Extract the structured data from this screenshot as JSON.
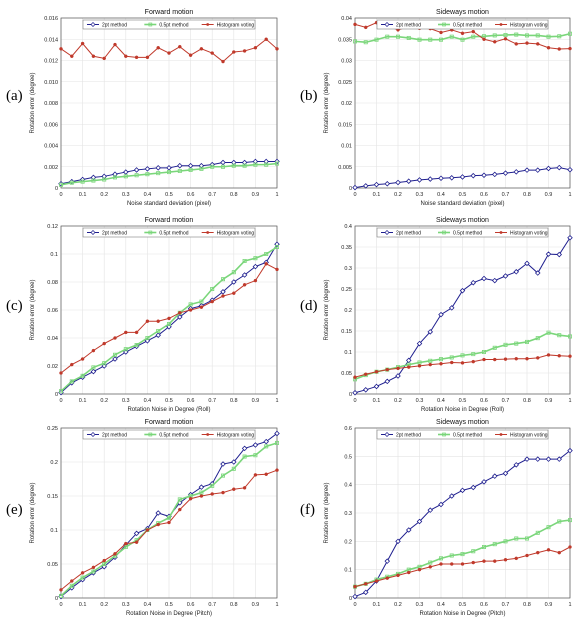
{
  "colors": {
    "2pt": "#1f1f8f",
    "0.5pt": "#7ad67a",
    "hist": "#c0392b"
  },
  "chart_data": [
    {
      "type": "line",
      "panel": "(a)",
      "title": "Forward motion",
      "xlabel": "Noise standard deviation (pixel)",
      "ylabel": "Rotation error (degree)",
      "xlim": [
        0,
        1
      ],
      "ylim": [
        0,
        0.016
      ],
      "xticks": [
        "0",
        "0.1",
        "0.2",
        "0.3",
        "0.4",
        "0.5",
        "0.6",
        "0.7",
        "0.8",
        "0.9",
        "1"
      ],
      "yticks": [
        "0",
        "0.002",
        "0.004",
        "0.006",
        "0.008",
        "0.010",
        "0.012",
        "0.014",
        "0.016"
      ],
      "x": [
        0,
        0.05,
        0.1,
        0.15,
        0.2,
        0.25,
        0.3,
        0.35,
        0.4,
        0.45,
        0.5,
        0.55,
        0.6,
        0.65,
        0.7,
        0.75,
        0.8,
        0.85,
        0.9,
        0.95,
        1
      ],
      "series": [
        {
          "name": "2pt method",
          "key": "2pt",
          "marker": "diamond",
          "values": [
            0.0004,
            0.0006,
            0.0008,
            0.001,
            0.0011,
            0.0013,
            0.0015,
            0.0017,
            0.0018,
            0.0019,
            0.0019,
            0.0021,
            0.0021,
            0.0021,
            0.0022,
            0.0024,
            0.0024,
            0.0024,
            0.0025,
            0.0025,
            0.0025
          ]
        },
        {
          "name": "0.5pt method",
          "key": "0.5pt",
          "marker": "square",
          "values": [
            0.0003,
            0.0005,
            0.0006,
            0.0007,
            0.0008,
            0.001,
            0.0011,
            0.0012,
            0.0013,
            0.0014,
            0.0015,
            0.0016,
            0.0017,
            0.0018,
            0.002,
            0.002,
            0.0021,
            0.0021,
            0.0022,
            0.0022,
            0.0023
          ]
        },
        {
          "name": "Histogram voting",
          "key": "hist",
          "marker": "circle",
          "values": [
            0.0131,
            0.0124,
            0.0136,
            0.0124,
            0.0122,
            0.0135,
            0.0124,
            0.0123,
            0.0123,
            0.0132,
            0.0127,
            0.0133,
            0.0125,
            0.0131,
            0.0127,
            0.0119,
            0.0128,
            0.0129,
            0.0132,
            0.014,
            0.0131
          ]
        }
      ],
      "legend": "top"
    },
    {
      "type": "line",
      "panel": "(b)",
      "title": "Sideways motion",
      "xlabel": "Noise standard deviation (pixel)",
      "ylabel": "Rotation error (degree)",
      "xlim": [
        0,
        1
      ],
      "ylim": [
        0,
        0.04
      ],
      "xticks": [
        "0",
        "0.1",
        "0.2",
        "0.3",
        "0.4",
        "0.5",
        "0.6",
        "0.7",
        "0.8",
        "0.9",
        "1"
      ],
      "yticks": [
        "0",
        "0.005",
        "0.01",
        "0.015",
        "0.02",
        "0.025",
        "0.03",
        "0.035",
        "0.04"
      ],
      "x": [
        0,
        0.05,
        0.1,
        0.15,
        0.2,
        0.25,
        0.3,
        0.35,
        0.4,
        0.45,
        0.5,
        0.55,
        0.6,
        0.65,
        0.7,
        0.75,
        0.8,
        0.85,
        0.9,
        0.95,
        1
      ],
      "series": [
        {
          "name": "2pt method",
          "key": "2pt",
          "marker": "diamond",
          "values": [
            0.0001,
            0.0005,
            0.0008,
            0.001,
            0.0013,
            0.0016,
            0.0019,
            0.0021,
            0.0023,
            0.0024,
            0.0026,
            0.0029,
            0.003,
            0.0032,
            0.0035,
            0.0038,
            0.0042,
            0.0042,
            0.0046,
            0.0048,
            0.0043
          ]
        },
        {
          "name": "0.5pt method",
          "key": "0.5pt",
          "marker": "square",
          "values": [
            0.0345,
            0.0343,
            0.0349,
            0.0356,
            0.0356,
            0.0353,
            0.0349,
            0.0349,
            0.0349,
            0.0356,
            0.0349,
            0.0356,
            0.0357,
            0.0359,
            0.036,
            0.0361,
            0.0359,
            0.0359,
            0.0356,
            0.0357,
            0.0363
          ]
        },
        {
          "name": "Histogram voting",
          "key": "hist",
          "marker": "circle",
          "values": [
            0.0385,
            0.0378,
            0.0389,
            0.0382,
            0.0372,
            0.038,
            0.0376,
            0.0375,
            0.0366,
            0.0372,
            0.0364,
            0.0368,
            0.035,
            0.0344,
            0.0351,
            0.0339,
            0.0341,
            0.0339,
            0.033,
            0.0327,
            0.0328
          ]
        }
      ],
      "legend": "top"
    },
    {
      "type": "line",
      "panel": "(c)",
      "title": "Forward motion",
      "xlabel": "Rotation Noise in Degree (Roll)",
      "ylabel": "Rotation error (degree)",
      "xlim": [
        0,
        1
      ],
      "ylim": [
        0,
        0.12
      ],
      "xticks": [
        "0",
        "0.1",
        "0.2",
        "0.3",
        "0.4",
        "0.5",
        "0.6",
        "0.7",
        "0.8",
        "0.9",
        "1"
      ],
      "yticks": [
        "0",
        "0.02",
        "0.04",
        "0.06",
        "0.08",
        "0.1",
        "0.12"
      ],
      "x": [
        0,
        0.05,
        0.1,
        0.15,
        0.2,
        0.25,
        0.3,
        0.35,
        0.4,
        0.45,
        0.5,
        0.55,
        0.6,
        0.65,
        0.7,
        0.75,
        0.8,
        0.85,
        0.9,
        0.95,
        1
      ],
      "series": [
        {
          "name": "2pt method",
          "key": "2pt",
          "marker": "diamond",
          "values": [
            0.001,
            0.008,
            0.012,
            0.016,
            0.02,
            0.025,
            0.03,
            0.034,
            0.038,
            0.042,
            0.048,
            0.055,
            0.061,
            0.063,
            0.067,
            0.073,
            0.08,
            0.085,
            0.091,
            0.094,
            0.107
          ]
        },
        {
          "name": "0.5pt method",
          "key": "0.5pt",
          "marker": "square",
          "values": [
            0.002,
            0.009,
            0.013,
            0.019,
            0.022,
            0.028,
            0.032,
            0.035,
            0.04,
            0.045,
            0.05,
            0.058,
            0.064,
            0.066,
            0.075,
            0.082,
            0.087,
            0.095,
            0.097,
            0.1,
            0.105
          ]
        },
        {
          "name": "Histogram voting",
          "key": "hist",
          "marker": "circle",
          "values": [
            0.015,
            0.021,
            0.025,
            0.031,
            0.036,
            0.04,
            0.044,
            0.044,
            0.052,
            0.052,
            0.054,
            0.058,
            0.06,
            0.062,
            0.066,
            0.07,
            0.072,
            0.078,
            0.081,
            0.093,
            0.089
          ]
        }
      ],
      "legend": "top"
    },
    {
      "type": "line",
      "panel": "(d)",
      "title": "Sideways motion",
      "xlabel": "Rotation Noise in Degree (Roll)",
      "ylabel": "Rotation error (degree)",
      "xlim": [
        0,
        1
      ],
      "ylim": [
        0,
        0.4
      ],
      "xticks": [
        "0",
        "0.1",
        "0.2",
        "0.3",
        "0.4",
        "0.5",
        "0.6",
        "0.7",
        "0.8",
        "0.9",
        "1"
      ],
      "yticks": [
        "0",
        "0.05",
        "0.1",
        "0.15",
        "0.2",
        "0.25",
        "0.3",
        "0.35",
        "0.4"
      ],
      "x": [
        0,
        0.05,
        0.1,
        0.15,
        0.2,
        0.25,
        0.3,
        0.35,
        0.4,
        0.45,
        0.5,
        0.55,
        0.6,
        0.65,
        0.7,
        0.75,
        0.8,
        0.85,
        0.9,
        0.95,
        1
      ],
      "series": [
        {
          "name": "2pt method",
          "key": "2pt",
          "marker": "diamond",
          "values": [
            0.003,
            0.01,
            0.018,
            0.03,
            0.043,
            0.08,
            0.12,
            0.148,
            0.189,
            0.205,
            0.246,
            0.265,
            0.275,
            0.27,
            0.281,
            0.291,
            0.311,
            0.288,
            0.333,
            0.332,
            0.372
          ]
        },
        {
          "name": "0.5pt method",
          "key": "0.5pt",
          "marker": "square",
          "values": [
            0.035,
            0.045,
            0.053,
            0.058,
            0.064,
            0.07,
            0.075,
            0.079,
            0.083,
            0.087,
            0.092,
            0.095,
            0.1,
            0.11,
            0.117,
            0.12,
            0.124,
            0.133,
            0.146,
            0.14,
            0.137
          ]
        },
        {
          "name": "Histogram voting",
          "key": "hist",
          "marker": "circle",
          "values": [
            0.04,
            0.047,
            0.053,
            0.058,
            0.061,
            0.064,
            0.067,
            0.07,
            0.072,
            0.075,
            0.074,
            0.077,
            0.082,
            0.082,
            0.083,
            0.084,
            0.084,
            0.086,
            0.093,
            0.091,
            0.09
          ]
        }
      ],
      "legend": "top"
    },
    {
      "type": "line",
      "panel": "(e)",
      "title": "Forward motion",
      "xlabel": "Rotation Noise in Degree (Pitch)",
      "ylabel": "Rotation error (degree)",
      "xlim": [
        0,
        1
      ],
      "ylim": [
        0,
        0.25
      ],
      "xticks": [
        "0",
        "0.1",
        "0.2",
        "0.3",
        "0.4",
        "0.5",
        "0.6",
        "0.7",
        "0.8",
        "0.9",
        "1"
      ],
      "yticks": [
        "0",
        "0.05",
        "0.1",
        "0.15",
        "0.2",
        "0.25"
      ],
      "x": [
        0,
        0.05,
        0.1,
        0.15,
        0.2,
        0.25,
        0.3,
        0.35,
        0.4,
        0.45,
        0.5,
        0.55,
        0.6,
        0.65,
        0.7,
        0.75,
        0.8,
        0.85,
        0.9,
        0.95,
        1
      ],
      "series": [
        {
          "name": "2pt method",
          "key": "2pt",
          "marker": "diamond",
          "values": [
            0.002,
            0.015,
            0.027,
            0.037,
            0.046,
            0.06,
            0.078,
            0.095,
            0.102,
            0.125,
            0.12,
            0.14,
            0.152,
            0.163,
            0.168,
            0.197,
            0.2,
            0.22,
            0.225,
            0.23,
            0.242
          ]
        },
        {
          "name": "0.5pt method",
          "key": "0.5pt",
          "marker": "square",
          "values": [
            0.003,
            0.018,
            0.03,
            0.039,
            0.05,
            0.062,
            0.075,
            0.085,
            0.1,
            0.11,
            0.118,
            0.145,
            0.15,
            0.155,
            0.165,
            0.18,
            0.19,
            0.208,
            0.21,
            0.223,
            0.228
          ]
        },
        {
          "name": "Histogram voting",
          "key": "hist",
          "marker": "circle",
          "values": [
            0.012,
            0.025,
            0.037,
            0.045,
            0.055,
            0.065,
            0.08,
            0.082,
            0.1,
            0.108,
            0.111,
            0.13,
            0.146,
            0.15,
            0.153,
            0.155,
            0.16,
            0.162,
            0.181,
            0.182,
            0.188
          ]
        }
      ],
      "legend": "top"
    },
    {
      "type": "line",
      "panel": "(f)",
      "title": "Sideways motion",
      "xlabel": "Rotation Noise in Degree (Pitch)",
      "ylabel": "Rotation error (degree)",
      "xlim": [
        0,
        1
      ],
      "ylim": [
        0,
        0.6
      ],
      "xticks": [
        "0",
        "0.1",
        "0.2",
        "0.3",
        "0.4",
        "0.5",
        "0.6",
        "0.7",
        "0.8",
        "0.9",
        "1"
      ],
      "yticks": [
        "0",
        "0.1",
        "0.2",
        "0.3",
        "0.4",
        "0.5",
        "0.6"
      ],
      "x": [
        0,
        0.05,
        0.1,
        0.15,
        0.2,
        0.25,
        0.3,
        0.35,
        0.4,
        0.45,
        0.5,
        0.55,
        0.6,
        0.65,
        0.7,
        0.75,
        0.8,
        0.85,
        0.9,
        0.95,
        1
      ],
      "series": [
        {
          "name": "2pt method",
          "key": "2pt",
          "marker": "diamond",
          "values": [
            0.005,
            0.02,
            0.06,
            0.13,
            0.2,
            0.24,
            0.27,
            0.31,
            0.33,
            0.36,
            0.38,
            0.39,
            0.41,
            0.43,
            0.44,
            0.47,
            0.49,
            0.49,
            0.49,
            0.49,
            0.52
          ]
        },
        {
          "name": "0.5pt method",
          "key": "0.5pt",
          "marker": "square",
          "values": [
            0.04,
            0.05,
            0.065,
            0.075,
            0.085,
            0.1,
            0.11,
            0.125,
            0.14,
            0.15,
            0.155,
            0.165,
            0.18,
            0.19,
            0.2,
            0.21,
            0.21,
            0.23,
            0.25,
            0.27,
            0.275
          ]
        },
        {
          "name": "Histogram voting",
          "key": "hist",
          "marker": "circle",
          "values": [
            0.04,
            0.05,
            0.06,
            0.07,
            0.08,
            0.09,
            0.1,
            0.11,
            0.12,
            0.12,
            0.12,
            0.125,
            0.13,
            0.13,
            0.135,
            0.14,
            0.15,
            0.16,
            0.17,
            0.16,
            0.18
          ]
        }
      ],
      "legend": "top"
    }
  ]
}
